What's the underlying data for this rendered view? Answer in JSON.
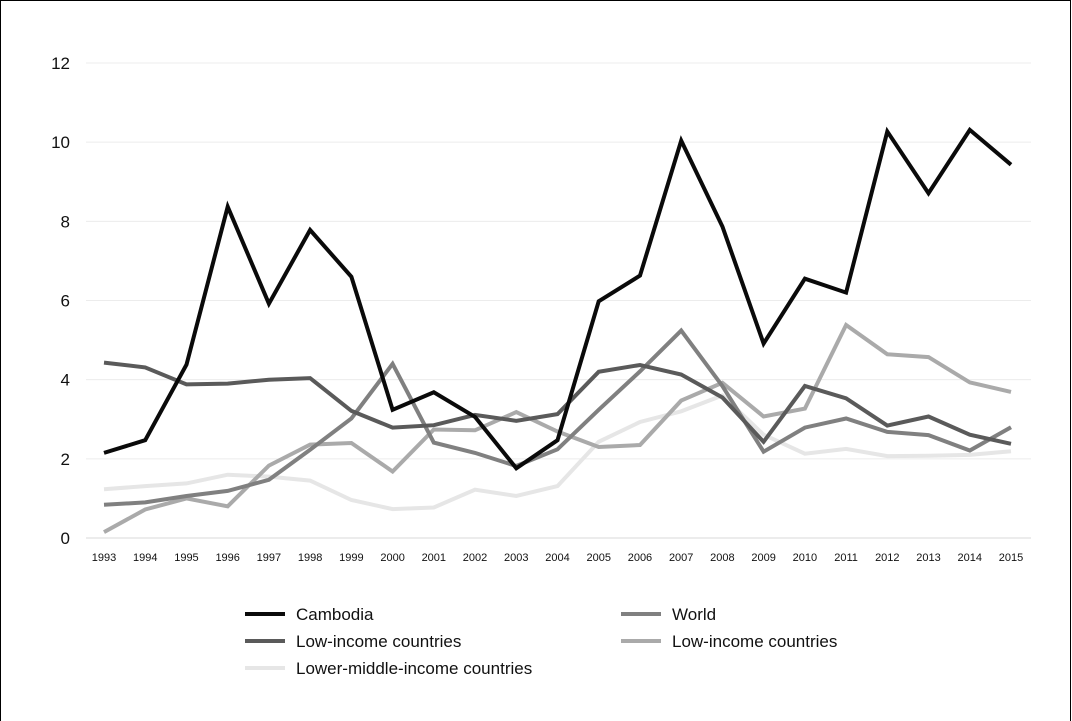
{
  "chart_data": {
    "type": "line",
    "title": "",
    "xlabel": "",
    "ylabel": "",
    "ylim": [
      0,
      12
    ],
    "yticks": [
      "0",
      "2",
      "4",
      "6",
      "8",
      "10",
      "12"
    ],
    "grid": true,
    "legend_position": "bottom",
    "categories": [
      "1993",
      "1994",
      "1995",
      "1996",
      "1997",
      "1998",
      "1999",
      "2000",
      "2001",
      "2002",
      "2003",
      "2004",
      "2005",
      "2006",
      "2007",
      "2008",
      "2009",
      "2010",
      "2011",
      "2012",
      "2013",
      "2014",
      "2015"
    ],
    "series": [
      {
        "name": "Cambodia",
        "color": "#0a0a0a",
        "values": [
          2.15,
          2.47,
          4.38,
          8.37,
          5.92,
          7.78,
          6.6,
          3.24,
          3.68,
          3.06,
          1.76,
          2.47,
          5.98,
          6.63,
          10.04,
          7.87,
          4.91,
          6.55,
          6.2,
          10.27,
          8.71,
          10.31,
          9.43
        ]
      },
      {
        "name": "World",
        "color": "#808080",
        "values": [
          0.84,
          0.9,
          1.06,
          1.19,
          1.47,
          2.23,
          3.02,
          4.4,
          2.41,
          2.15,
          1.82,
          2.24,
          3.24,
          4.21,
          5.24,
          3.84,
          2.18,
          2.79,
          3.02,
          2.68,
          2.6,
          2.21,
          2.8
        ]
      },
      {
        "name": "Low-income countries",
        "color": "#5a5a5a",
        "values": [
          4.43,
          4.31,
          3.88,
          3.9,
          4.0,
          4.04,
          3.21,
          2.79,
          2.85,
          3.11,
          2.96,
          3.13,
          4.2,
          4.37,
          4.13,
          3.55,
          2.43,
          3.84,
          3.53,
          2.84,
          3.07,
          2.61,
          2.38
        ]
      },
      {
        "name": "Low-income countries",
        "color": "#aaaaaa",
        "values": [
          0.15,
          0.72,
          1.0,
          0.8,
          1.83,
          2.36,
          2.4,
          1.68,
          2.74,
          2.72,
          3.18,
          2.69,
          2.3,
          2.35,
          3.47,
          3.92,
          3.07,
          3.27,
          5.38,
          4.64,
          4.57,
          3.93,
          3.69
        ]
      },
      {
        "name": "Lower-middle-income countries",
        "color": "#e6e6e6",
        "values": [
          1.23,
          1.31,
          1.38,
          1.6,
          1.55,
          1.45,
          0.96,
          0.73,
          0.77,
          1.22,
          1.06,
          1.31,
          2.43,
          2.93,
          3.2,
          3.6,
          2.61,
          2.13,
          2.25,
          2.07,
          2.08,
          2.1,
          2.19
        ]
      }
    ]
  }
}
